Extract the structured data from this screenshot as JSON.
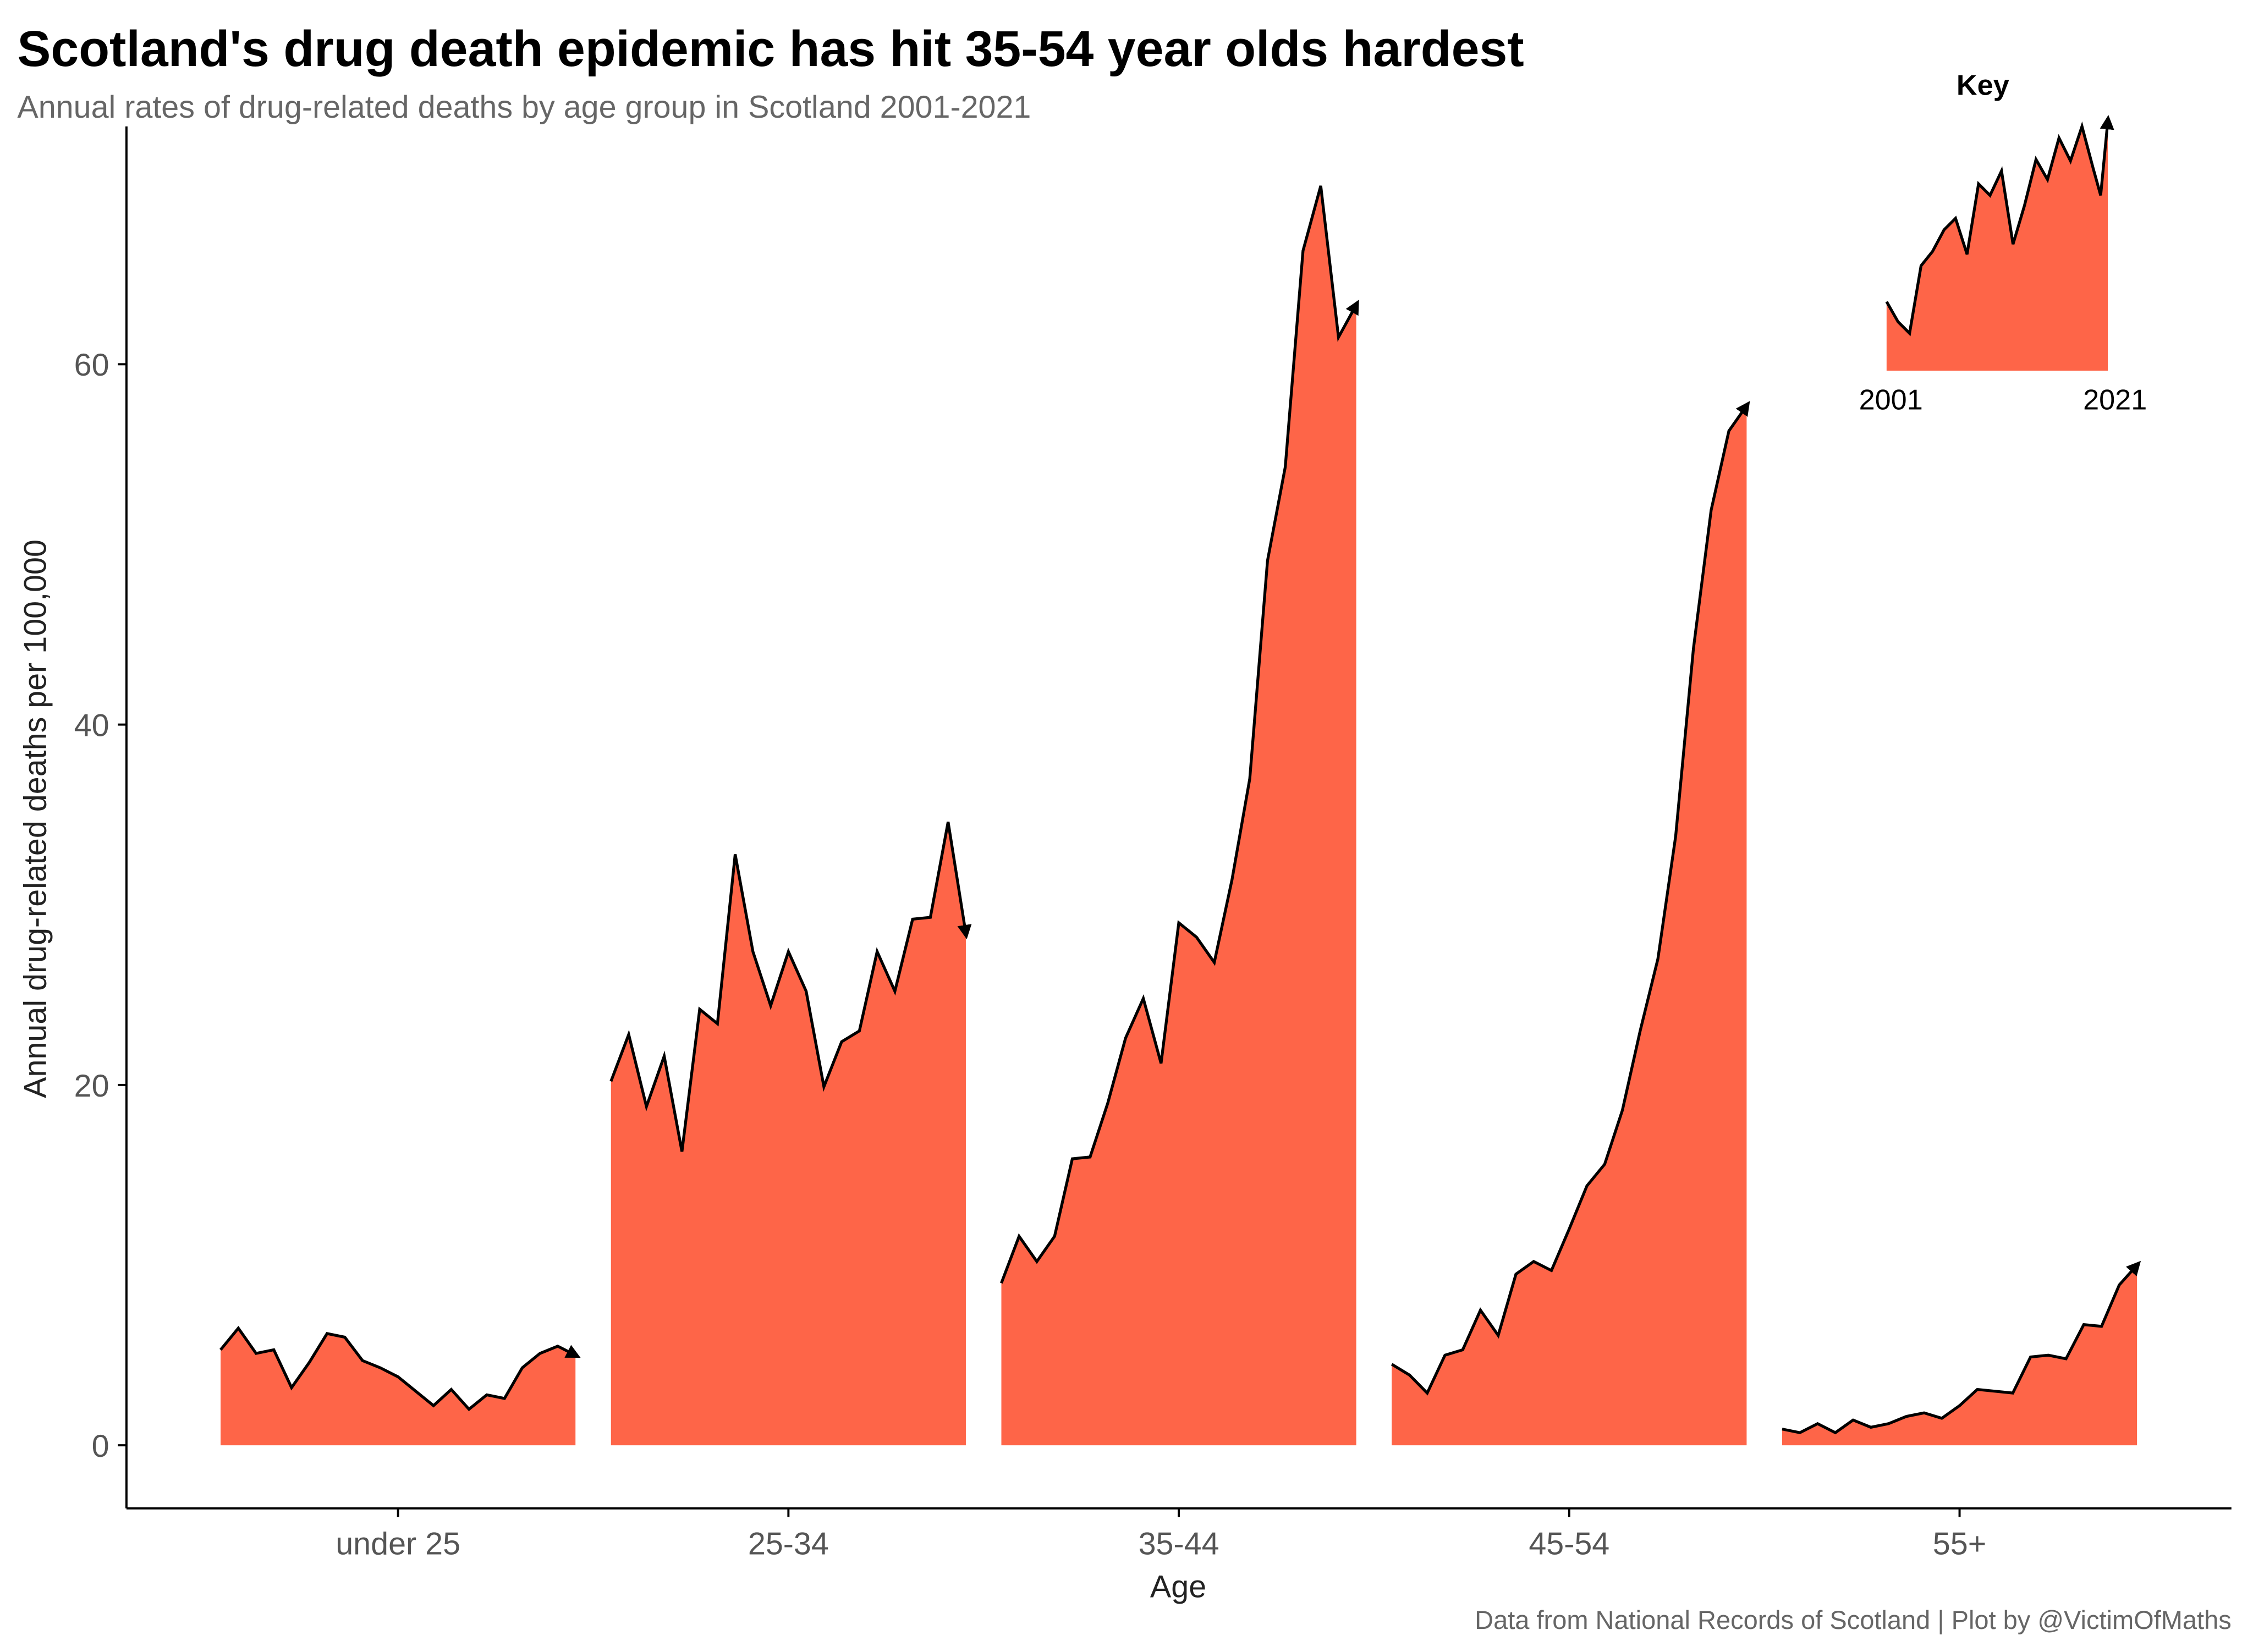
{
  "chart_data": {
    "type": "area",
    "title": "Scotland's drug death epidemic has hit 35-54 year olds hardest",
    "subtitle": "Annual rates of drug-related deaths by age group in Scotland 2001-2021",
    "y_label": "Annual drug-related deaths per 100,000",
    "x_label": "Age",
    "caption": "Data from National Records of Scotland | Plot by @VictimOfMaths",
    "color": "#fe6548",
    "key": {
      "title": "Key",
      "from": 2001,
      "to": 2021
    },
    "ylim": [
      -3.5,
      73.2
    ],
    "yticks": [
      0,
      20,
      40,
      60
    ],
    "series": [
      {
        "name": "under 25",
        "values": [
          5.3,
          6.5,
          5.1,
          5.3,
          3.2,
          4.6,
          6.2,
          6.0,
          4.7,
          4.3,
          3.8,
          3.0,
          2.2,
          3.1,
          2.0,
          2.8,
          2.6,
          4.3,
          5.1,
          5.5,
          5.0
        ]
      },
      {
        "name": "25-34",
        "values": [
          20.2,
          22.8,
          18.8,
          21.6,
          16.3,
          24.2,
          23.4,
          32.8,
          27.4,
          24.4,
          27.4,
          25.2,
          19.9,
          22.4,
          23.0,
          27.4,
          25.2,
          29.2,
          29.3,
          34.6,
          28.4
        ]
      },
      {
        "name": "35-44",
        "values": [
          9.0,
          11.6,
          10.2,
          11.6,
          15.9,
          16.0,
          19.0,
          22.6,
          24.8,
          21.2,
          29.0,
          28.2,
          26.8,
          31.4,
          37.0,
          49.1,
          54.3,
          66.3,
          69.9,
          61.5,
          63.3
        ]
      },
      {
        "name": "45-54",
        "values": [
          4.5,
          3.9,
          2.9,
          5.0,
          5.3,
          7.5,
          6.1,
          9.5,
          10.2,
          9.7,
          12.0,
          14.4,
          15.6,
          18.6,
          23.0,
          27.0,
          33.8,
          44.2,
          51.9,
          56.3,
          57.7
        ]
      },
      {
        "name": "55+",
        "values": [
          0.9,
          0.7,
          1.2,
          0.7,
          1.4,
          1.0,
          1.2,
          1.6,
          1.8,
          1.5,
          2.2,
          3.1,
          3.0,
          2.9,
          4.9,
          5.0,
          4.8,
          6.7,
          6.6,
          8.9,
          10.0
        ]
      }
    ]
  }
}
